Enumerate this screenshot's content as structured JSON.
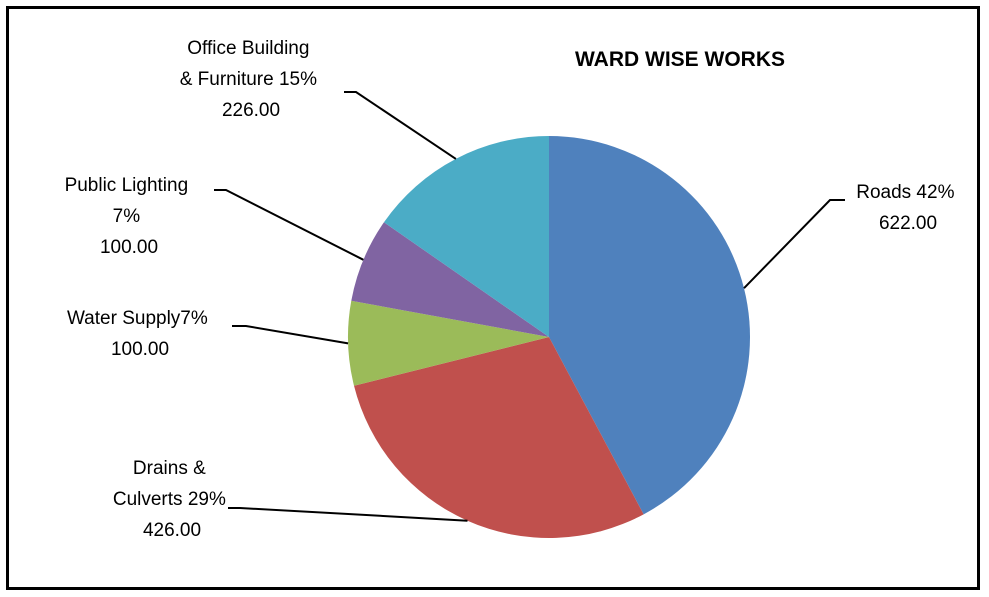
{
  "chart_data": {
    "type": "pie",
    "title": "WARD WISE WORKS",
    "slices": [
      {
        "name": "Roads",
        "percent_label": "42%",
        "value": 622.0,
        "value_label": "622.00",
        "color": "#4F81BD"
      },
      {
        "name": "Drains & Culverts",
        "percent_label": "29%",
        "value": 426.0,
        "value_label": "426.00",
        "color": "#C0504D"
      },
      {
        "name": "Water Supply",
        "percent_label": "7%",
        "value": 100.0,
        "value_label": "100.00",
        "color": "#9BBB59"
      },
      {
        "name": "Public Lighting",
        "percent_label": "7%",
        "value": 100.0,
        "value_label": "100.00",
        "color": "#8064A2"
      },
      {
        "name": "Office Building & Furniture",
        "percent_label": "15%",
        "value": 226.0,
        "value_label": "226.00",
        "color": "#4BACC6"
      }
    ],
    "labels": [
      {
        "lines": [
          "Roads 42%",
          "622.00"
        ]
      },
      {
        "lines": [
          "Drains &",
          "Culverts 29%",
          "426.00"
        ]
      },
      {
        "lines": [
          "Water Supply7%",
          "100.00"
        ]
      },
      {
        "lines": [
          "Public Lighting",
          "7%",
          "100.00"
        ]
      },
      {
        "lines": [
          "Office Building",
          "& Furniture 15%",
          "226.00"
        ]
      }
    ]
  }
}
